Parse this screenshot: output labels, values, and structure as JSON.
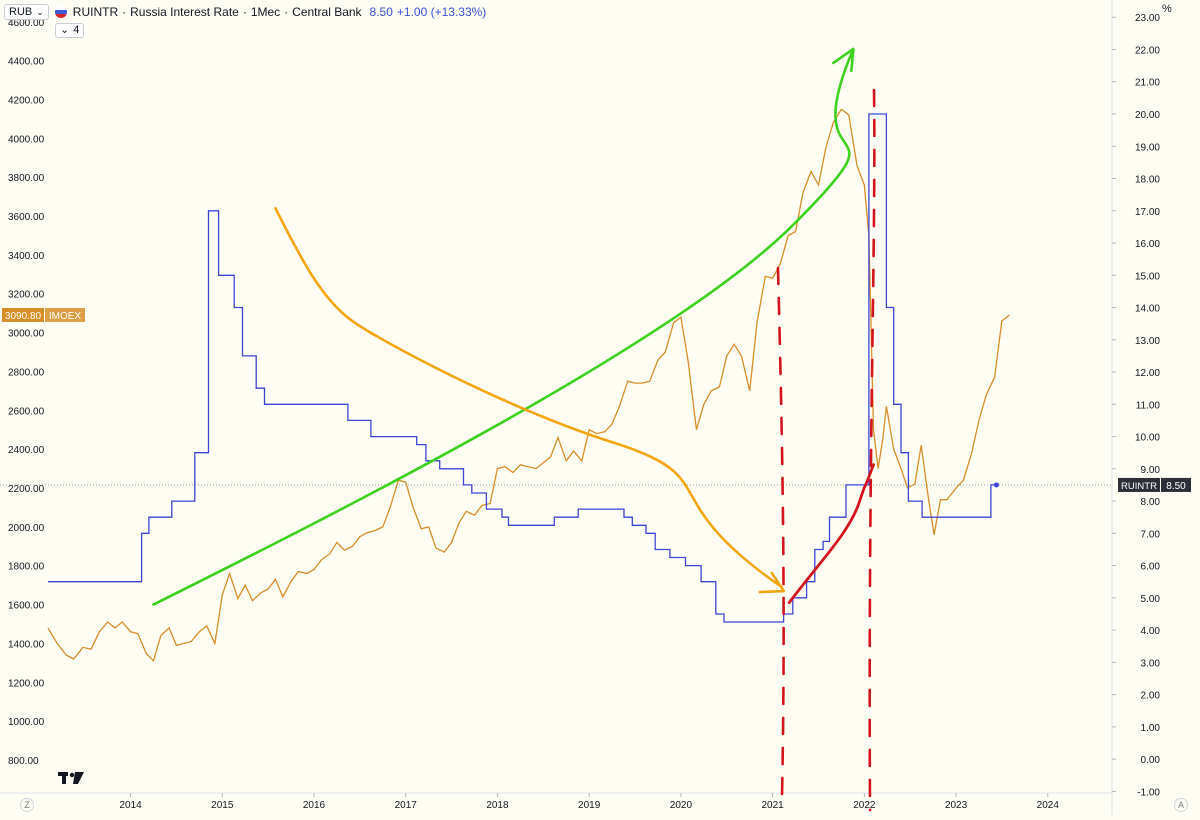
{
  "header": {
    "currency_label": "RUB",
    "symbol": "RUINTR",
    "sep1": "·",
    "series_title": "Russia Interest Rate",
    "sep2": "·",
    "interval": "1Mec",
    "sep3": "·",
    "source": "Central Bank",
    "last_value": "8.50",
    "change": "+1.00 (+13.33%)",
    "indicator_count": "4",
    "right_unit": "%"
  },
  "colors": {
    "background": "#fefdf4",
    "rate_line": "#3d45d6",
    "imoex_line": "#d78e28",
    "green_arrow": "#3cd21e",
    "orange_arrow": "#f5a60f",
    "red_mark": "#d3141c",
    "label_imoex_bg": "#d98d26",
    "label_rate_bg": "#2c2f38"
  },
  "chart_data": {
    "type": "line",
    "x_axis": {
      "ticks": [
        "2014",
        "2015",
        "2016",
        "2017",
        "2018",
        "2019",
        "2020",
        "2021",
        "2022",
        "2023",
        "2024"
      ],
      "range": [
        2013.1,
        2024.7
      ]
    },
    "left_axis": {
      "unit": "RUB",
      "ticks": [
        "4600.00",
        "4400.00",
        "4200.00",
        "4000.00",
        "3800.00",
        "3600.00",
        "3400.00",
        "3200.00",
        "3000.00",
        "2800.00",
        "2600.00",
        "2400.00",
        "2200.00",
        "2000.00",
        "1800.00",
        "1600.00",
        "1400.00",
        "1200.00",
        "1000.00",
        "800.00"
      ],
      "range": [
        630,
        4640
      ]
    },
    "right_axis": {
      "unit": "%",
      "ticks": [
        "23.00",
        "22.00",
        "21.00",
        "20.00",
        "19.00",
        "18.00",
        "17.00",
        "16.00",
        "15.00",
        "14.00",
        "13.00",
        "12.00",
        "11.00",
        "10.00",
        "9.00",
        "8.00",
        "7.00",
        "6.00",
        "5.00",
        "4.00",
        "3.00",
        "2.00",
        "1.00",
        "0.00",
        "-1.00"
      ],
      "range": [
        -1.05,
        23.1
      ]
    },
    "series": [
      {
        "name": "RUINTR",
        "axis": "right",
        "style": "step",
        "last_label": "8.50",
        "points": [
          [
            2013.1,
            5.5
          ],
          [
            2014.12,
            5.5
          ],
          [
            2014.12,
            7.0
          ],
          [
            2014.2,
            7.0
          ],
          [
            2014.2,
            7.5
          ],
          [
            2014.45,
            7.5
          ],
          [
            2014.45,
            8.0
          ],
          [
            2014.7,
            8.0
          ],
          [
            2014.7,
            9.5
          ],
          [
            2014.85,
            9.5
          ],
          [
            2014.85,
            17.0
          ],
          [
            2014.96,
            17.0
          ],
          [
            2014.96,
            15.0
          ],
          [
            2015.13,
            15.0
          ],
          [
            2015.13,
            14.0
          ],
          [
            2015.22,
            14.0
          ],
          [
            2015.22,
            12.5
          ],
          [
            2015.37,
            12.5
          ],
          [
            2015.37,
            11.5
          ],
          [
            2015.46,
            11.5
          ],
          [
            2015.46,
            11.0
          ],
          [
            2016.37,
            11.0
          ],
          [
            2016.37,
            10.5
          ],
          [
            2016.62,
            10.5
          ],
          [
            2016.62,
            10.0
          ],
          [
            2017.12,
            10.0
          ],
          [
            2017.12,
            9.75
          ],
          [
            2017.22,
            9.75
          ],
          [
            2017.22,
            9.25
          ],
          [
            2017.37,
            9.25
          ],
          [
            2017.37,
            9.0
          ],
          [
            2017.63,
            9.0
          ],
          [
            2017.63,
            8.5
          ],
          [
            2017.72,
            8.5
          ],
          [
            2017.72,
            8.25
          ],
          [
            2017.88,
            8.25
          ],
          [
            2017.88,
            7.75
          ],
          [
            2018.05,
            7.75
          ],
          [
            2018.05,
            7.5
          ],
          [
            2018.12,
            7.5
          ],
          [
            2018.12,
            7.25
          ],
          [
            2018.62,
            7.25
          ],
          [
            2018.62,
            7.5
          ],
          [
            2018.88,
            7.5
          ],
          [
            2018.88,
            7.75
          ],
          [
            2019.38,
            7.75
          ],
          [
            2019.38,
            7.5
          ],
          [
            2019.47,
            7.5
          ],
          [
            2019.47,
            7.25
          ],
          [
            2019.62,
            7.25
          ],
          [
            2019.62,
            7.0
          ],
          [
            2019.72,
            7.0
          ],
          [
            2019.72,
            6.5
          ],
          [
            2019.88,
            6.5
          ],
          [
            2019.88,
            6.25
          ],
          [
            2020.05,
            6.25
          ],
          [
            2020.05,
            6.0
          ],
          [
            2020.22,
            6.0
          ],
          [
            2020.22,
            5.5
          ],
          [
            2020.38,
            5.5
          ],
          [
            2020.38,
            4.5
          ],
          [
            2020.47,
            4.5
          ],
          [
            2020.47,
            4.25
          ],
          [
            2021.12,
            4.25
          ],
          [
            2021.12,
            4.5
          ],
          [
            2021.22,
            4.5
          ],
          [
            2021.22,
            5.0
          ],
          [
            2021.37,
            5.0
          ],
          [
            2021.37,
            5.5
          ],
          [
            2021.46,
            5.5
          ],
          [
            2021.46,
            6.5
          ],
          [
            2021.55,
            6.5
          ],
          [
            2021.55,
            6.75
          ],
          [
            2021.62,
            6.75
          ],
          [
            2021.62,
            7.5
          ],
          [
            2021.8,
            7.5
          ],
          [
            2021.8,
            8.5
          ],
          [
            2022.05,
            8.5
          ],
          [
            2022.05,
            20.0
          ],
          [
            2022.24,
            20.0
          ],
          [
            2022.24,
            14.0
          ],
          [
            2022.32,
            14.0
          ],
          [
            2022.32,
            11.0
          ],
          [
            2022.4,
            11.0
          ],
          [
            2022.4,
            9.5
          ],
          [
            2022.48,
            9.5
          ],
          [
            2022.48,
            8.0
          ],
          [
            2022.63,
            8.0
          ],
          [
            2022.63,
            7.5
          ],
          [
            2023.38,
            7.5
          ],
          [
            2023.38,
            8.5
          ],
          [
            2023.44,
            8.5
          ]
        ]
      },
      {
        "name": "IMOEX",
        "axis": "left",
        "style": "line",
        "last_label": "3090.80",
        "points": [
          [
            2013.1,
            1480
          ],
          [
            2013.2,
            1400
          ],
          [
            2013.3,
            1340
          ],
          [
            2013.38,
            1320
          ],
          [
            2013.48,
            1380
          ],
          [
            2013.57,
            1370
          ],
          [
            2013.66,
            1460
          ],
          [
            2013.75,
            1510
          ],
          [
            2013.83,
            1480
          ],
          [
            2013.91,
            1510
          ],
          [
            2014.0,
            1460
          ],
          [
            2014.08,
            1450
          ],
          [
            2014.17,
            1350
          ],
          [
            2014.25,
            1310
          ],
          [
            2014.33,
            1440
          ],
          [
            2014.42,
            1480
          ],
          [
            2014.5,
            1390
          ],
          [
            2014.58,
            1400
          ],
          [
            2014.66,
            1410
          ],
          [
            2014.75,
            1460
          ],
          [
            2014.83,
            1490
          ],
          [
            2014.92,
            1400
          ],
          [
            2015.0,
            1650
          ],
          [
            2015.08,
            1760
          ],
          [
            2015.17,
            1630
          ],
          [
            2015.25,
            1700
          ],
          [
            2015.33,
            1620
          ],
          [
            2015.42,
            1660
          ],
          [
            2015.5,
            1680
          ],
          [
            2015.58,
            1730
          ],
          [
            2015.66,
            1640
          ],
          [
            2015.75,
            1720
          ],
          [
            2015.83,
            1770
          ],
          [
            2015.92,
            1760
          ],
          [
            2016.0,
            1780
          ],
          [
            2016.08,
            1830
          ],
          [
            2016.17,
            1860
          ],
          [
            2016.25,
            1920
          ],
          [
            2016.33,
            1880
          ],
          [
            2016.42,
            1900
          ],
          [
            2016.5,
            1950
          ],
          [
            2016.58,
            1970
          ],
          [
            2016.66,
            1980
          ],
          [
            2016.75,
            2000
          ],
          [
            2016.83,
            2100
          ],
          [
            2016.92,
            2240
          ],
          [
            2017.0,
            2230
          ],
          [
            2017.08,
            2100
          ],
          [
            2017.17,
            1990
          ],
          [
            2017.25,
            2000
          ],
          [
            2017.33,
            1890
          ],
          [
            2017.42,
            1870
          ],
          [
            2017.5,
            1920
          ],
          [
            2017.58,
            2020
          ],
          [
            2017.66,
            2080
          ],
          [
            2017.75,
            2060
          ],
          [
            2017.83,
            2110
          ],
          [
            2017.92,
            2120
          ],
          [
            2018.0,
            2300
          ],
          [
            2018.08,
            2310
          ],
          [
            2018.17,
            2280
          ],
          [
            2018.25,
            2320
          ],
          [
            2018.33,
            2310
          ],
          [
            2018.42,
            2300
          ],
          [
            2018.5,
            2330
          ],
          [
            2018.58,
            2360
          ],
          [
            2018.66,
            2460
          ],
          [
            2018.75,
            2340
          ],
          [
            2018.83,
            2390
          ],
          [
            2018.92,
            2340
          ],
          [
            2019.0,
            2500
          ],
          [
            2019.08,
            2480
          ],
          [
            2019.17,
            2490
          ],
          [
            2019.25,
            2530
          ],
          [
            2019.33,
            2620
          ],
          [
            2019.42,
            2750
          ],
          [
            2019.5,
            2740
          ],
          [
            2019.58,
            2740
          ],
          [
            2019.66,
            2750
          ],
          [
            2019.75,
            2860
          ],
          [
            2019.83,
            2900
          ],
          [
            2019.92,
            3050
          ],
          [
            2020.0,
            3080
          ],
          [
            2020.08,
            2850
          ],
          [
            2020.17,
            2500
          ],
          [
            2020.25,
            2630
          ],
          [
            2020.33,
            2700
          ],
          [
            2020.42,
            2720
          ],
          [
            2020.5,
            2880
          ],
          [
            2020.58,
            2940
          ],
          [
            2020.66,
            2880
          ],
          [
            2020.75,
            2700
          ],
          [
            2020.83,
            3050
          ],
          [
            2020.92,
            3290
          ],
          [
            2021.0,
            3280
          ],
          [
            2021.08,
            3350
          ],
          [
            2021.17,
            3500
          ],
          [
            2021.25,
            3520
          ],
          [
            2021.33,
            3720
          ],
          [
            2021.42,
            3830
          ],
          [
            2021.5,
            3760
          ],
          [
            2021.58,
            3950
          ],
          [
            2021.66,
            4080
          ],
          [
            2021.75,
            4150
          ],
          [
            2021.83,
            4120
          ],
          [
            2021.92,
            3860
          ],
          [
            2022.0,
            3760
          ],
          [
            2022.05,
            3500
          ],
          [
            2022.1,
            2500
          ],
          [
            2022.15,
            2300
          ],
          [
            2022.2,
            2450
          ],
          [
            2022.24,
            2620
          ],
          [
            2022.32,
            2400
          ],
          [
            2022.4,
            2300
          ],
          [
            2022.47,
            2200
          ],
          [
            2022.55,
            2220
          ],
          [
            2022.62,
            2420
          ],
          [
            2022.7,
            2140
          ],
          [
            2022.76,
            1960
          ],
          [
            2022.83,
            2140
          ],
          [
            2022.9,
            2140
          ],
          [
            2023.0,
            2200
          ],
          [
            2023.08,
            2240
          ],
          [
            2023.17,
            2380
          ],
          [
            2023.25,
            2550
          ],
          [
            2023.33,
            2680
          ],
          [
            2023.42,
            2770
          ],
          [
            2023.5,
            3060
          ],
          [
            2023.58,
            3090
          ]
        ]
      }
    ],
    "annotations": {
      "green_arrow": {
        "direction": "up-right",
        "from": [
          2014.25,
          1600
        ],
        "to": [
          2021.88,
          4460
        ]
      },
      "orange_curve_arrow": {
        "direction": "down-right",
        "from": [
          2015.58,
          3640
        ],
        "to": [
          2021.1,
          1690
        ]
      },
      "red_dashed_line_1": {
        "x": 2021.08,
        "style": "dashed"
      },
      "red_dashed_line_2": {
        "x": 2022.04,
        "style": "dashed"
      },
      "red_curve": {
        "from": [
          2021.18,
          1610
        ],
        "to": [
          2022.1,
          2320
        ]
      }
    },
    "current_rate_level": 8.5,
    "grid": false,
    "legend": "none"
  }
}
